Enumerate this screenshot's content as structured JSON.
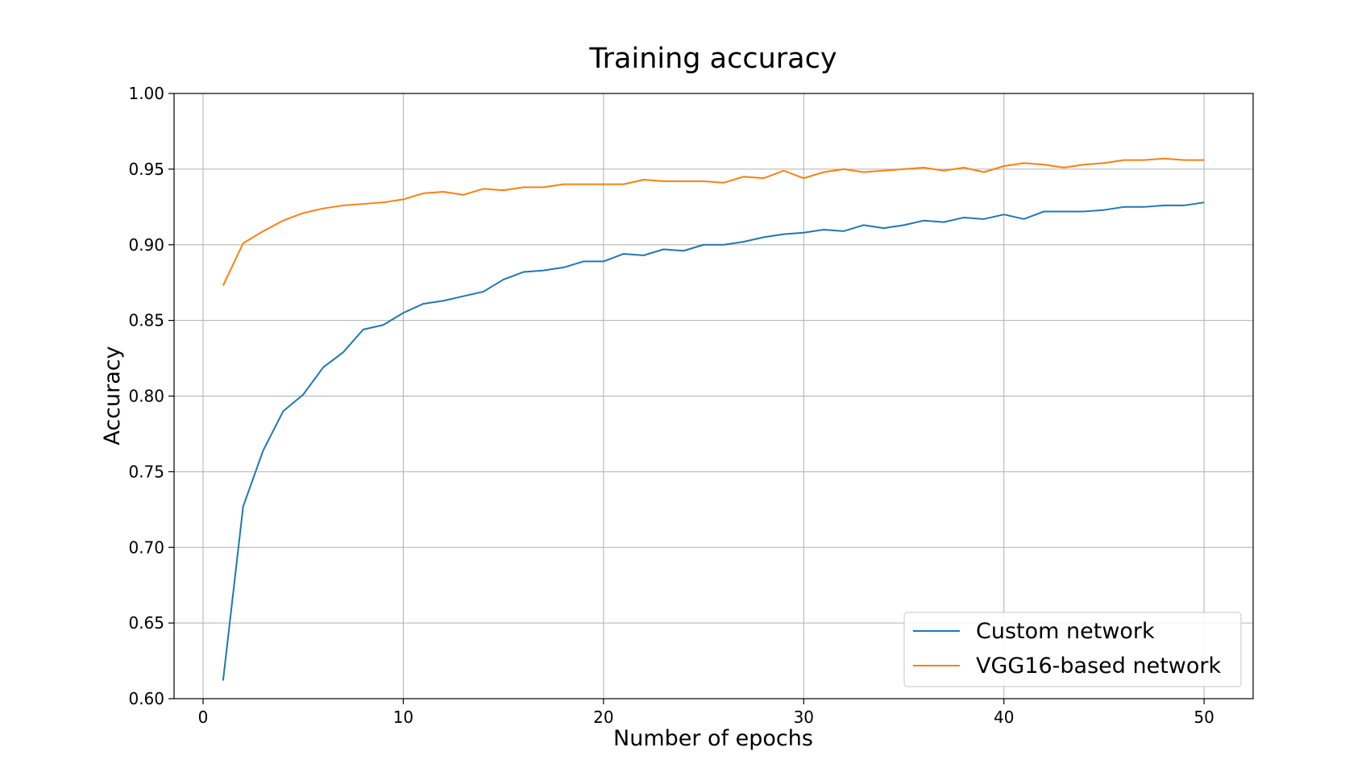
{
  "chart_data": {
    "type": "line",
    "title": "Training accuracy",
    "xlabel": "Number of epochs",
    "ylabel": "Accuracy",
    "xlim": [
      -1.45,
      52.45
    ],
    "ylim": [
      0.6,
      1.0
    ],
    "xticks": [
      0,
      10,
      20,
      30,
      40,
      50
    ],
    "xtick_labels": [
      "0",
      "10",
      "20",
      "30",
      "40",
      "50"
    ],
    "yticks": [
      0.6,
      0.65,
      0.7,
      0.75,
      0.8,
      0.85,
      0.9,
      0.95,
      1.0
    ],
    "ytick_labels": [
      "0.60",
      "0.65",
      "0.70",
      "0.75",
      "0.80",
      "0.85",
      "0.90",
      "0.95",
      "1.00"
    ],
    "grid": true,
    "legend_position": "bottom-right",
    "x": [
      1,
      2,
      3,
      4,
      5,
      6,
      7,
      8,
      9,
      10,
      11,
      12,
      13,
      14,
      15,
      16,
      17,
      18,
      19,
      20,
      21,
      22,
      23,
      24,
      25,
      26,
      27,
      28,
      29,
      30,
      31,
      32,
      33,
      34,
      35,
      36,
      37,
      38,
      39,
      40,
      41,
      42,
      43,
      44,
      45,
      46,
      47,
      48,
      49,
      50
    ],
    "series": [
      {
        "name": "Custom network",
        "color": "#1f77b4",
        "values": [
          0.612,
          0.727,
          0.764,
          0.79,
          0.801,
          0.819,
          0.829,
          0.844,
          0.847,
          0.855,
          0.861,
          0.863,
          0.866,
          0.869,
          0.877,
          0.882,
          0.883,
          0.885,
          0.889,
          0.889,
          0.894,
          0.893,
          0.897,
          0.896,
          0.9,
          0.9,
          0.902,
          0.905,
          0.907,
          0.908,
          0.91,
          0.909,
          0.913,
          0.911,
          0.913,
          0.916,
          0.915,
          0.918,
          0.917,
          0.92,
          0.917,
          0.922,
          0.922,
          0.922,
          0.923,
          0.925,
          0.925,
          0.926,
          0.926,
          0.928
        ]
      },
      {
        "name": "VGG16-based network",
        "color": "#ff7f0e",
        "values": [
          0.873,
          0.901,
          0.909,
          0.916,
          0.921,
          0.924,
          0.926,
          0.927,
          0.928,
          0.93,
          0.934,
          0.935,
          0.933,
          0.937,
          0.936,
          0.938,
          0.938,
          0.94,
          0.94,
          0.94,
          0.94,
          0.943,
          0.942,
          0.942,
          0.942,
          0.941,
          0.945,
          0.944,
          0.949,
          0.944,
          0.948,
          0.95,
          0.948,
          0.949,
          0.95,
          0.951,
          0.949,
          0.951,
          0.948,
          0.952,
          0.954,
          0.953,
          0.951,
          0.953,
          0.954,
          0.956,
          0.956,
          0.957,
          0.956,
          0.956
        ]
      }
    ]
  }
}
